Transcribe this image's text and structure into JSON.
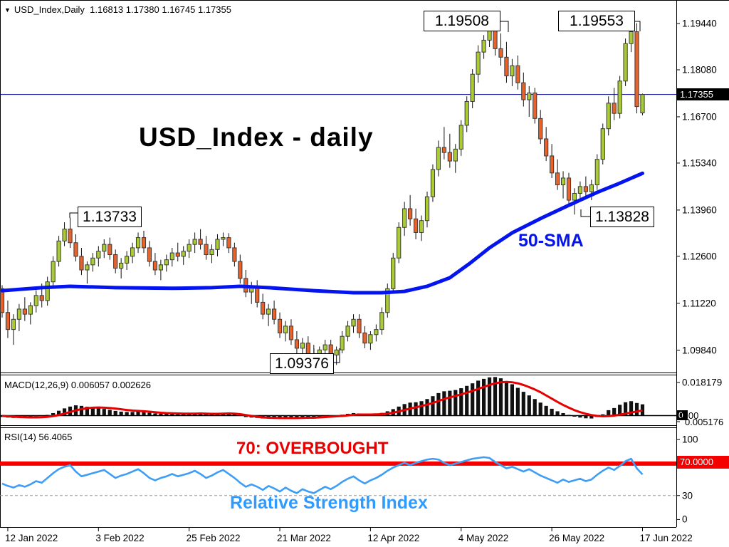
{
  "window": {
    "marker_icon": "▼",
    "symbol_timeframe": "USD_Index,Daily",
    "ohlc_readout": "1.16813 1.17380 1.16745 1.17355"
  },
  "main_panel": {
    "watermark": "USD_Index - daily",
    "sma_label": "50-SMA",
    "current_price_badge": "1.17355"
  },
  "macd_panel": {
    "label": "MACD(12,26,9) 0.006057 0.002626",
    "axis_top_label": "0.018179",
    "axis_zero_badge": "0",
    "axis_zero_overlap": "0.00",
    "axis_low_label": "0.005176"
  },
  "rsi_panel": {
    "label": "RSI(14) 56.4065",
    "overbought_text": "70: OVERBOUGHT",
    "index_text": "Relative Strength Index",
    "level_badge": "70.0000"
  },
  "colors": {
    "bull_fill": "#A9CC32",
    "bear_fill": "#E8632C",
    "candle_border": "#3a3a3a",
    "wick": "#111111",
    "sma": "#0414EE",
    "sma_label": "#0414EE",
    "current_price_line": "#00008B",
    "badge_black": "#000000",
    "macd_hist": "#111111",
    "macd_signal": "#E80000",
    "rsi_line": "#3E9EF5",
    "rsi_red_line": "#F50000",
    "rsi_text": "#2D9BFF",
    "overbought_text": "#E80000",
    "grid_dash": "#999999",
    "frame": "#000000"
  },
  "chart_data": {
    "type": "candlestick+indicators",
    "symbol": "USD_Index",
    "timeframe": "Daily",
    "current_ohlc": {
      "open": 1.16813,
      "high": 1.1738,
      "low": 1.16745,
      "close": 1.17355
    },
    "indicators": {
      "sma_period": 50,
      "macd_params": "12,26,9",
      "macd_main": 0.006057,
      "macd_signal_value": 0.002626,
      "rsi_period": 14,
      "rsi_value": 56.4065,
      "rsi_overbought_level": 70
    },
    "price_axis": {
      "min": 1.091,
      "max": 1.196,
      "ticks": [
        {
          "v": 1.1944,
          "label": "1.19440"
        },
        {
          "v": 1.1808,
          "label": "1.18080"
        },
        {
          "v": 1.167,
          "label": "1.16700"
        },
        {
          "v": 1.1534,
          "label": "1.15340"
        },
        {
          "v": 1.1396,
          "label": "1.13960"
        },
        {
          "v": 1.126,
          "label": "1.12600"
        },
        {
          "v": 1.1122,
          "label": "1.11220"
        },
        {
          "v": 1.0984,
          "label": "1.09840"
        }
      ],
      "current_price": 1.17355
    },
    "x_ticks": [
      {
        "i": 1,
        "label": "12 Jan 2022"
      },
      {
        "i": 17,
        "label": "3 Feb 2022"
      },
      {
        "i": 33,
        "label": "25 Feb 2022"
      },
      {
        "i": 49,
        "label": "21 Mar 2022"
      },
      {
        "i": 65,
        "label": "12 Apr 2022"
      },
      {
        "i": 81,
        "label": "4 May 2022"
      },
      {
        "i": 97,
        "label": "26 May 2022"
      },
      {
        "i": 113,
        "label": "17 Jun 2022"
      }
    ],
    "annotations": [
      {
        "id": "a1",
        "text": "1.19508",
        "anchor_index": 86,
        "anchor_price": 1.19508,
        "kind": "swing-high"
      },
      {
        "id": "a2",
        "text": "1.19553",
        "anchor_index": 111,
        "anchor_price": 1.19553,
        "kind": "swing-high"
      },
      {
        "id": "a3",
        "text": "1.13733",
        "anchor_index": 12,
        "anchor_price": 1.13733,
        "kind": "swing-high"
      },
      {
        "id": "a4",
        "text": "1.13828",
        "anchor_index": 101,
        "anchor_price": 1.13828,
        "kind": "swing-low"
      },
      {
        "id": "a5",
        "text": "1.09376",
        "anchor_index": 55,
        "anchor_price": 1.09376,
        "kind": "swing-low"
      }
    ],
    "candles": [
      [
        1.1165,
        1.1175,
        1.108,
        1.1095
      ],
      [
        1.1095,
        1.113,
        1.102,
        1.1045
      ],
      [
        1.1045,
        1.109,
        1.1,
        1.1075
      ],
      [
        1.1075,
        1.112,
        1.104,
        1.1105
      ],
      [
        1.1105,
        1.114,
        1.107,
        1.109
      ],
      [
        1.109,
        1.1125,
        1.106,
        1.1115
      ],
      [
        1.1115,
        1.116,
        1.1095,
        1.1145
      ],
      [
        1.1145,
        1.118,
        1.111,
        1.113
      ],
      [
        1.113,
        1.12,
        1.1115,
        1.1185
      ],
      [
        1.1185,
        1.126,
        1.117,
        1.1245
      ],
      [
        1.1245,
        1.132,
        1.123,
        1.1305
      ],
      [
        1.1305,
        1.136,
        1.129,
        1.134
      ],
      [
        1.134,
        1.13733,
        1.1285,
        1.13
      ],
      [
        1.13,
        1.1325,
        1.1245,
        1.126
      ],
      [
        1.126,
        1.1285,
        1.1205,
        1.122
      ],
      [
        1.122,
        1.1245,
        1.118,
        1.1235
      ],
      [
        1.1235,
        1.127,
        1.1215,
        1.1255
      ],
      [
        1.1255,
        1.129,
        1.123,
        1.1275
      ],
      [
        1.1275,
        1.131,
        1.1255,
        1.1295
      ],
      [
        1.1295,
        1.1315,
        1.125,
        1.1265
      ],
      [
        1.1265,
        1.128,
        1.121,
        1.1225
      ],
      [
        1.1225,
        1.1255,
        1.1195,
        1.124
      ],
      [
        1.124,
        1.1275,
        1.122,
        1.126
      ],
      [
        1.126,
        1.13,
        1.124,
        1.1285
      ],
      [
        1.1285,
        1.133,
        1.127,
        1.1315
      ],
      [
        1.1315,
        1.1335,
        1.127,
        1.1285
      ],
      [
        1.1285,
        1.1305,
        1.123,
        1.1245
      ],
      [
        1.1245,
        1.127,
        1.1205,
        1.122
      ],
      [
        1.122,
        1.125,
        1.119,
        1.1235
      ],
      [
        1.1235,
        1.1265,
        1.1215,
        1.125
      ],
      [
        1.125,
        1.1285,
        1.123,
        1.127
      ],
      [
        1.127,
        1.13,
        1.1245,
        1.126
      ],
      [
        1.126,
        1.129,
        1.1235,
        1.1275
      ],
      [
        1.1275,
        1.131,
        1.1255,
        1.1295
      ],
      [
        1.1295,
        1.133,
        1.127,
        1.131
      ],
      [
        1.131,
        1.134,
        1.128,
        1.1295
      ],
      [
        1.1295,
        1.132,
        1.125,
        1.1265
      ],
      [
        1.1265,
        1.1295,
        1.124,
        1.128
      ],
      [
        1.128,
        1.1325,
        1.126,
        1.131
      ],
      [
        1.131,
        1.133,
        1.129,
        1.1315
      ],
      [
        1.1315,
        1.1328,
        1.127,
        1.1285
      ],
      [
        1.1285,
        1.13,
        1.123,
        1.1245
      ],
      [
        1.1245,
        1.1265,
        1.118,
        1.1195
      ],
      [
        1.1195,
        1.122,
        1.114,
        1.1155
      ],
      [
        1.1155,
        1.1185,
        1.112,
        1.117
      ],
      [
        1.117,
        1.119,
        1.111,
        1.1125
      ],
      [
        1.1125,
        1.115,
        1.1075,
        1.109
      ],
      [
        1.109,
        1.112,
        1.1055,
        1.1105
      ],
      [
        1.1105,
        1.113,
        1.106,
        1.1075
      ],
      [
        1.1075,
        1.1095,
        1.102,
        1.1035
      ],
      [
        1.1035,
        1.107,
        1.101,
        1.1055
      ],
      [
        1.1055,
        1.1075,
        1.1,
        1.1015
      ],
      [
        1.1015,
        1.104,
        1.0975,
        1.099
      ],
      [
        1.099,
        1.102,
        1.096,
        1.1005
      ],
      [
        1.1005,
        1.1025,
        1.0955,
        1.097
      ],
      [
        1.097,
        1.1,
        1.09376,
        1.095
      ],
      [
        1.095,
        1.0995,
        1.0942,
        1.0985
      ],
      [
        1.0985,
        1.1015,
        1.0965,
        1.1
      ],
      [
        1.1,
        1.1015,
        1.0955,
        1.097
      ],
      [
        1.097,
        1.0995,
        1.0941,
        1.0985
      ],
      [
        1.0985,
        1.104,
        1.0975,
        1.1025
      ],
      [
        1.1025,
        1.107,
        1.101,
        1.1055
      ],
      [
        1.1055,
        1.109,
        1.1035,
        1.1075
      ],
      [
        1.1075,
        1.109,
        1.102,
        1.1035
      ],
      [
        1.1035,
        1.1055,
        1.099,
        1.1005
      ],
      [
        1.1005,
        1.104,
        1.0985,
        1.103
      ],
      [
        1.103,
        1.106,
        1.101,
        1.1045
      ],
      [
        1.1045,
        1.111,
        1.103,
        1.1095
      ],
      [
        1.1095,
        1.118,
        1.108,
        1.1165
      ],
      [
        1.1165,
        1.127,
        1.115,
        1.1255
      ],
      [
        1.1255,
        1.136,
        1.124,
        1.1345
      ],
      [
        1.1345,
        1.142,
        1.132,
        1.14
      ],
      [
        1.14,
        1.144,
        1.135,
        1.137
      ],
      [
        1.137,
        1.14,
        1.131,
        1.133
      ],
      [
        1.133,
        1.138,
        1.1305,
        1.1365
      ],
      [
        1.1365,
        1.145,
        1.1345,
        1.1435
      ],
      [
        1.1435,
        1.153,
        1.142,
        1.1515
      ],
      [
        1.1515,
        1.16,
        1.1495,
        1.158
      ],
      [
        1.158,
        1.164,
        1.1545,
        1.1565
      ],
      [
        1.1565,
        1.162,
        1.152,
        1.154
      ],
      [
        1.154,
        1.159,
        1.1505,
        1.1575
      ],
      [
        1.1575,
        1.166,
        1.1555,
        1.1645
      ],
      [
        1.1645,
        1.173,
        1.1625,
        1.1715
      ],
      [
        1.1715,
        1.181,
        1.1695,
        1.1795
      ],
      [
        1.1795,
        1.188,
        1.177,
        1.186
      ],
      [
        1.186,
        1.191,
        1.184,
        1.1895
      ],
      [
        1.1895,
        1.19508,
        1.1875,
        1.194
      ],
      [
        1.194,
        1.1948,
        1.185,
        1.187
      ],
      [
        1.187,
        1.1915,
        1.182,
        1.1845
      ],
      [
        1.1845,
        1.189,
        1.177,
        1.179
      ],
      [
        1.179,
        1.184,
        1.176,
        1.182
      ],
      [
        1.182,
        1.185,
        1.175,
        1.177
      ],
      [
        1.177,
        1.18,
        1.17,
        1.172
      ],
      [
        1.172,
        1.176,
        1.167,
        1.174
      ],
      [
        1.174,
        1.1755,
        1.165,
        1.1665
      ],
      [
        1.1665,
        1.169,
        1.159,
        1.1605
      ],
      [
        1.1605,
        1.164,
        1.154,
        1.1555
      ],
      [
        1.1555,
        1.159,
        1.149,
        1.1505
      ],
      [
        1.1505,
        1.1545,
        1.1455,
        1.147
      ],
      [
        1.147,
        1.151,
        1.143,
        1.149
      ],
      [
        1.149,
        1.1505,
        1.141,
        1.1425
      ],
      [
        1.1425,
        1.146,
        1.13828,
        1.1445
      ],
      [
        1.1445,
        1.148,
        1.142,
        1.1465
      ],
      [
        1.1465,
        1.1495,
        1.1435,
        1.145
      ],
      [
        1.145,
        1.1485,
        1.1425,
        1.147
      ],
      [
        1.147,
        1.156,
        1.1455,
        1.1545
      ],
      [
        1.1545,
        1.165,
        1.153,
        1.1635
      ],
      [
        1.1635,
        1.173,
        1.1615,
        1.171
      ],
      [
        1.171,
        1.1755,
        1.166,
        1.168
      ],
      [
        1.168,
        1.179,
        1.1665,
        1.1775
      ],
      [
        1.1775,
        1.19,
        1.176,
        1.1885
      ],
      [
        1.1885,
        1.19553,
        1.186,
        1.192
      ],
      [
        1.192,
        1.1945,
        1.168,
        1.17
      ],
      [
        1.16813,
        1.1738,
        1.16745,
        1.17355
      ]
    ],
    "sma50_points": [
      [
        0,
        1.1159
      ],
      [
        7,
        1.1168
      ],
      [
        12,
        1.1172
      ],
      [
        20,
        1.1168
      ],
      [
        30,
        1.1166
      ],
      [
        37,
        1.1168
      ],
      [
        42,
        1.1172
      ],
      [
        47,
        1.1168
      ],
      [
        55,
        1.1159
      ],
      [
        62,
        1.1153
      ],
      [
        67,
        1.1153
      ],
      [
        71,
        1.1157
      ],
      [
        75,
        1.1172
      ],
      [
        79,
        1.1197
      ],
      [
        82.5,
        1.1239
      ],
      [
        86,
        1.1285
      ],
      [
        90,
        1.1329
      ],
      [
        95,
        1.1371
      ],
      [
        100,
        1.141
      ],
      [
        105,
        1.1448
      ],
      [
        109,
        1.1475
      ],
      [
        113,
        1.1504
      ]
    ],
    "macd": {
      "axis_top": 0.018179,
      "axis_low": 0.005176,
      "histogram": [
        -0.001,
        -0.0013,
        -0.0015,
        -0.0013,
        -0.001,
        -0.0008,
        -0.0005,
        -0.0003,
        0.0002,
        0.0012,
        0.0025,
        0.0038,
        0.0048,
        0.0055,
        0.0052,
        0.0047,
        0.0042,
        0.0038,
        0.0035,
        0.003,
        0.0024,
        0.002,
        0.0018,
        0.0018,
        0.002,
        0.0018,
        0.0014,
        0.001,
        0.0008,
        0.0008,
        0.0009,
        0.0008,
        0.0008,
        0.0009,
        0.0011,
        0.001,
        0.0007,
        0.0006,
        0.0009,
        0.0013,
        0.0012,
        0.0006,
        -0.0003,
        -0.001,
        -0.0013,
        -0.0015,
        -0.0018,
        -0.0016,
        -0.0015,
        -0.0017,
        -0.0013,
        -0.0013,
        -0.0014,
        -0.001,
        -0.001,
        -0.0011,
        -0.0008,
        -0.0004,
        -0.0004,
        -0.0002,
        0.0003,
        0.0008,
        0.0012,
        0.001,
        0.0006,
        0.0006,
        0.0008,
        0.0013,
        0.0022,
        0.0034,
        0.0048,
        0.0062,
        0.007,
        0.0072,
        0.0078,
        0.009,
        0.0106,
        0.0123,
        0.0133,
        0.0136,
        0.014,
        0.015,
        0.0163,
        0.0177,
        0.0192,
        0.0202,
        0.021,
        0.0212,
        0.0205,
        0.019,
        0.0172,
        0.0152,
        0.013,
        0.011,
        0.009,
        0.007,
        0.0052,
        0.0036,
        0.0022,
        0.0012,
        0.0002,
        -0.0008,
        -0.0013,
        -0.0017,
        -0.0018,
        -0.001,
        0.0005,
        0.0028,
        0.004,
        0.0058,
        0.0072,
        0.0078,
        0.0068,
        0.006057
      ],
      "signal": [
        -0.0004,
        -0.0006,
        -0.0008,
        -0.001,
        -0.0011,
        -0.0012,
        -0.0012,
        -0.0011,
        -0.0009,
        -0.0005,
        0.0001,
        0.0009,
        0.0018,
        0.0027,
        0.0034,
        0.0039,
        0.0042,
        0.0043,
        0.0042,
        0.004,
        0.0037,
        0.0033,
        0.0029,
        0.0026,
        0.0024,
        0.0022,
        0.002,
        0.0017,
        0.0014,
        0.0012,
        0.0011,
        0.001,
        0.0009,
        0.0009,
        0.0009,
        0.001,
        0.0009,
        0.0008,
        0.0008,
        0.0009,
        0.001,
        0.0009,
        0.0006,
        0.0001,
        -0.0004,
        -0.0008,
        -0.0012,
        -0.0014,
        -0.0015,
        -0.0016,
        -0.0016,
        -0.0016,
        -0.0016,
        -0.0015,
        -0.0014,
        -0.0014,
        -0.0012,
        -0.001,
        -0.0008,
        -0.0006,
        -0.0004,
        -0.0001,
        0.0002,
        0.0004,
        0.0004,
        0.0004,
        0.0005,
        0.0006,
        0.0009,
        0.0014,
        0.0021,
        0.0029,
        0.0037,
        0.0044,
        0.0051,
        0.0059,
        0.0068,
        0.0079,
        0.009,
        0.0099,
        0.0107,
        0.0116,
        0.0125,
        0.0135,
        0.0146,
        0.0157,
        0.0168,
        0.0177,
        0.0183,
        0.0185,
        0.0183,
        0.0177,
        0.0168,
        0.0156,
        0.0143,
        0.0128,
        0.011,
        0.0092,
        0.0074,
        0.0057,
        0.0042,
        0.0028,
        0.0017,
        0.0008,
        0.0001,
        -0.0004,
        -0.0006,
        -0.0005,
        -0.0002,
        0.0003,
        0.0009,
        0.0015,
        0.0021,
        0.002626
      ]
    },
    "rsi": {
      "axis_ticks": [
        100,
        70,
        30,
        0
      ],
      "values": [
        45,
        42,
        40,
        43,
        41,
        44,
        48,
        46,
        52,
        58,
        63,
        66,
        68,
        60,
        54,
        56,
        58,
        60,
        62,
        57,
        52,
        55,
        57,
        60,
        63,
        58,
        52,
        49,
        52,
        54,
        57,
        54,
        56,
        58,
        61,
        57,
        52,
        55,
        59,
        62,
        57,
        52,
        46,
        41,
        44,
        41,
        37,
        42,
        39,
        35,
        40,
        36,
        33,
        38,
        35,
        33,
        37,
        41,
        38,
        42,
        47,
        51,
        54,
        49,
        45,
        49,
        52,
        56,
        61,
        65,
        68,
        71,
        68,
        71,
        73,
        75,
        76,
        75,
        71,
        68,
        70,
        72,
        74,
        76,
        77,
        78,
        77,
        72,
        68,
        64,
        66,
        63,
        60,
        63,
        59,
        55,
        52,
        49,
        46,
        50,
        47,
        49,
        51,
        48,
        50,
        56,
        61,
        65,
        62,
        67,
        73,
        76,
        64,
        56.4
      ]
    }
  }
}
